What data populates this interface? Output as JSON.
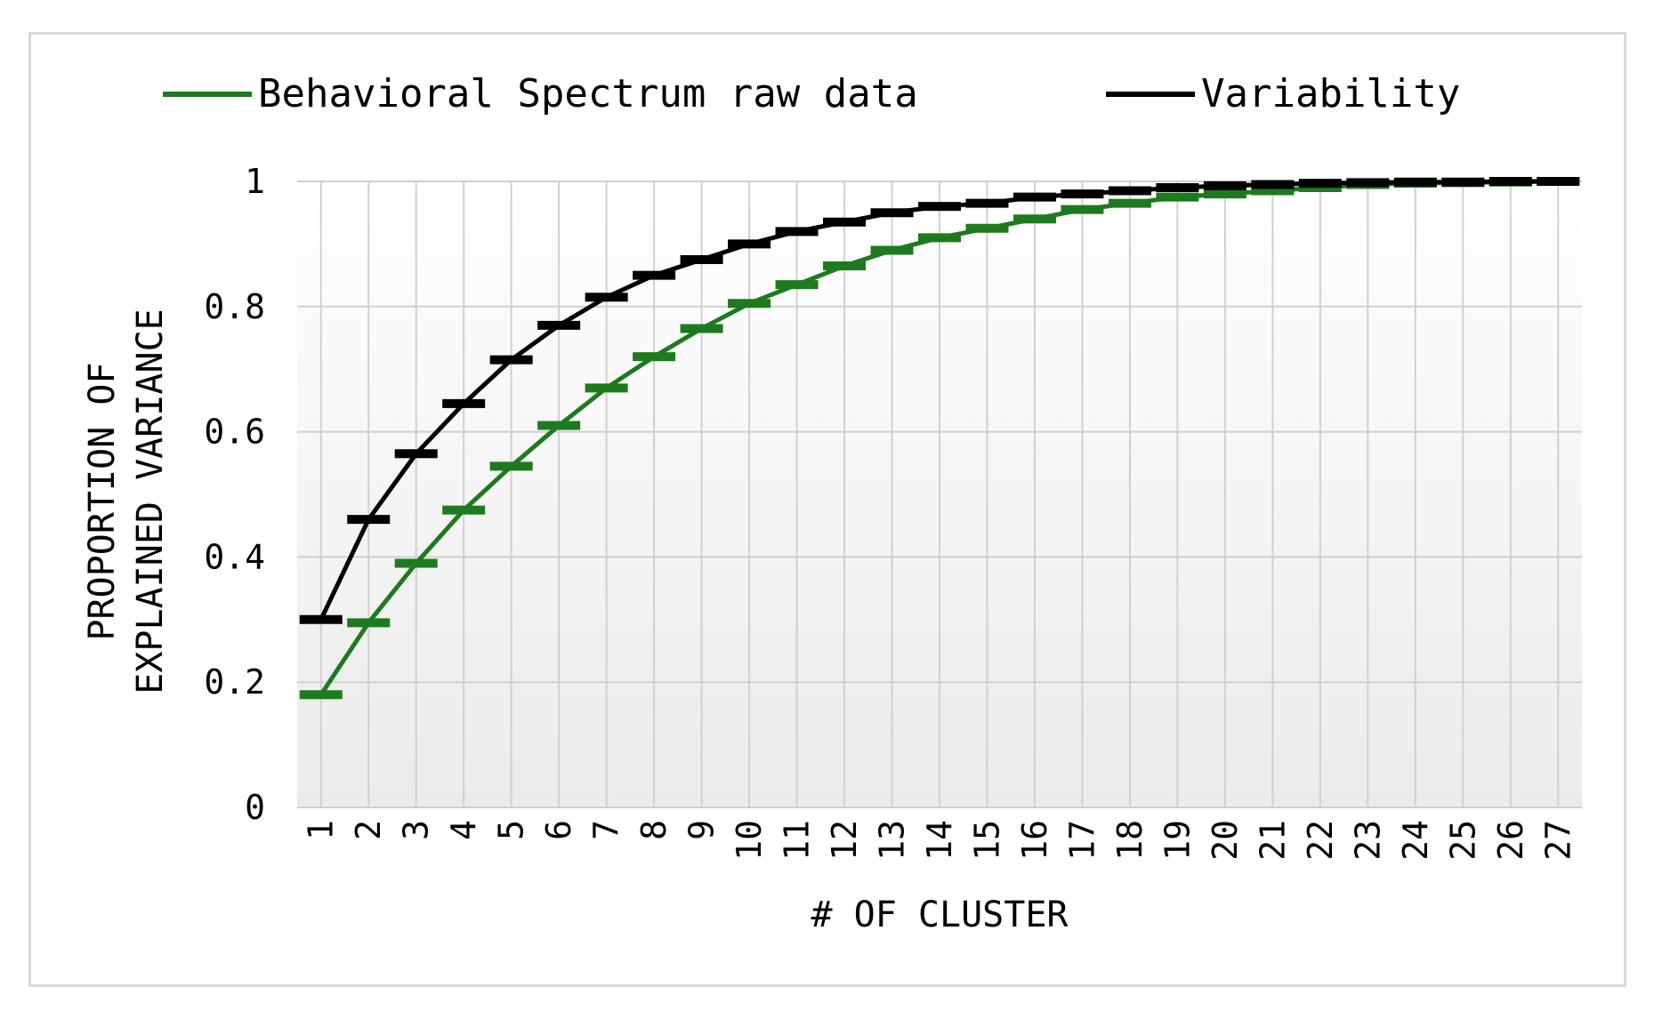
{
  "chart_data": {
    "type": "line",
    "title": "",
    "xlabel": "# OF CLUSTER",
    "ylabel": [
      "PROPORTION OF",
      "EXPLAINED VARIANCE"
    ],
    "ylim": [
      0,
      1
    ],
    "yticks": [
      "0",
      "0.2",
      "0.4",
      "0.6",
      "0.8",
      "1"
    ],
    "categories": [
      "1",
      "2",
      "3",
      "4",
      "5",
      "6",
      "7",
      "8",
      "9",
      "10",
      "11",
      "12",
      "13",
      "14",
      "15",
      "16",
      "17",
      "18",
      "19",
      "20",
      "21",
      "22",
      "23",
      "24",
      "25",
      "26",
      "27"
    ],
    "grid": true,
    "legend_position": "top",
    "series": [
      {
        "name": "Behavioral Spectrum raw data",
        "color": "#1e7a1e",
        "values": [
          0.18,
          0.295,
          0.39,
          0.475,
          0.545,
          0.61,
          0.67,
          0.72,
          0.765,
          0.805,
          0.835,
          0.865,
          0.89,
          0.91,
          0.925,
          0.94,
          0.955,
          0.965,
          0.975,
          0.98,
          0.985,
          0.99,
          0.995,
          0.997,
          0.998,
          0.999,
          1.0
        ]
      },
      {
        "name": "Variability",
        "color": "#000000",
        "values": [
          0.3,
          0.46,
          0.565,
          0.645,
          0.715,
          0.77,
          0.815,
          0.85,
          0.875,
          0.9,
          0.92,
          0.935,
          0.95,
          0.96,
          0.965,
          0.975,
          0.98,
          0.985,
          0.99,
          0.993,
          0.995,
          0.997,
          0.998,
          0.999,
          0.999,
          1.0,
          1.0
        ]
      }
    ]
  }
}
